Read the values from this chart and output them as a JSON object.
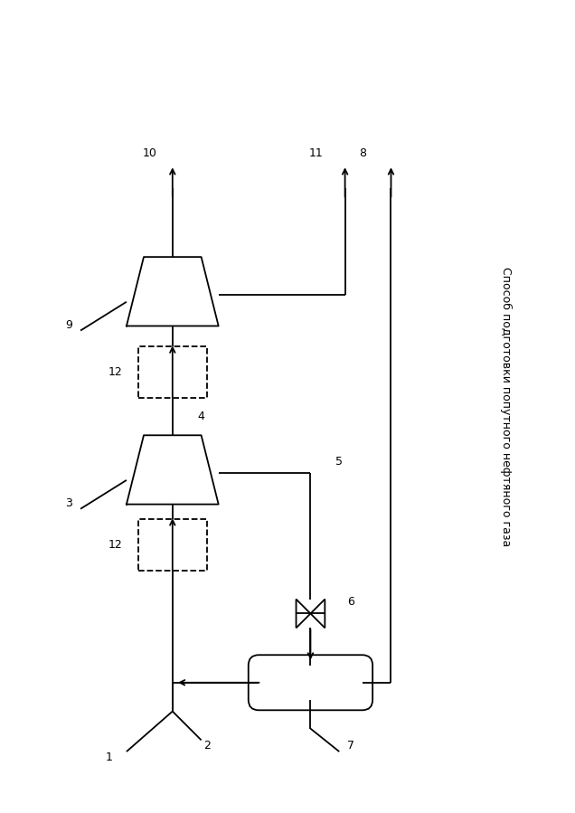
{
  "title": "Способ подготовки попутного нефтяного газа",
  "background_color": "#ffffff",
  "line_color": "#000000",
  "line_width": 1.3,
  "label_fontsize": 9,
  "title_fontsize": 9
}
